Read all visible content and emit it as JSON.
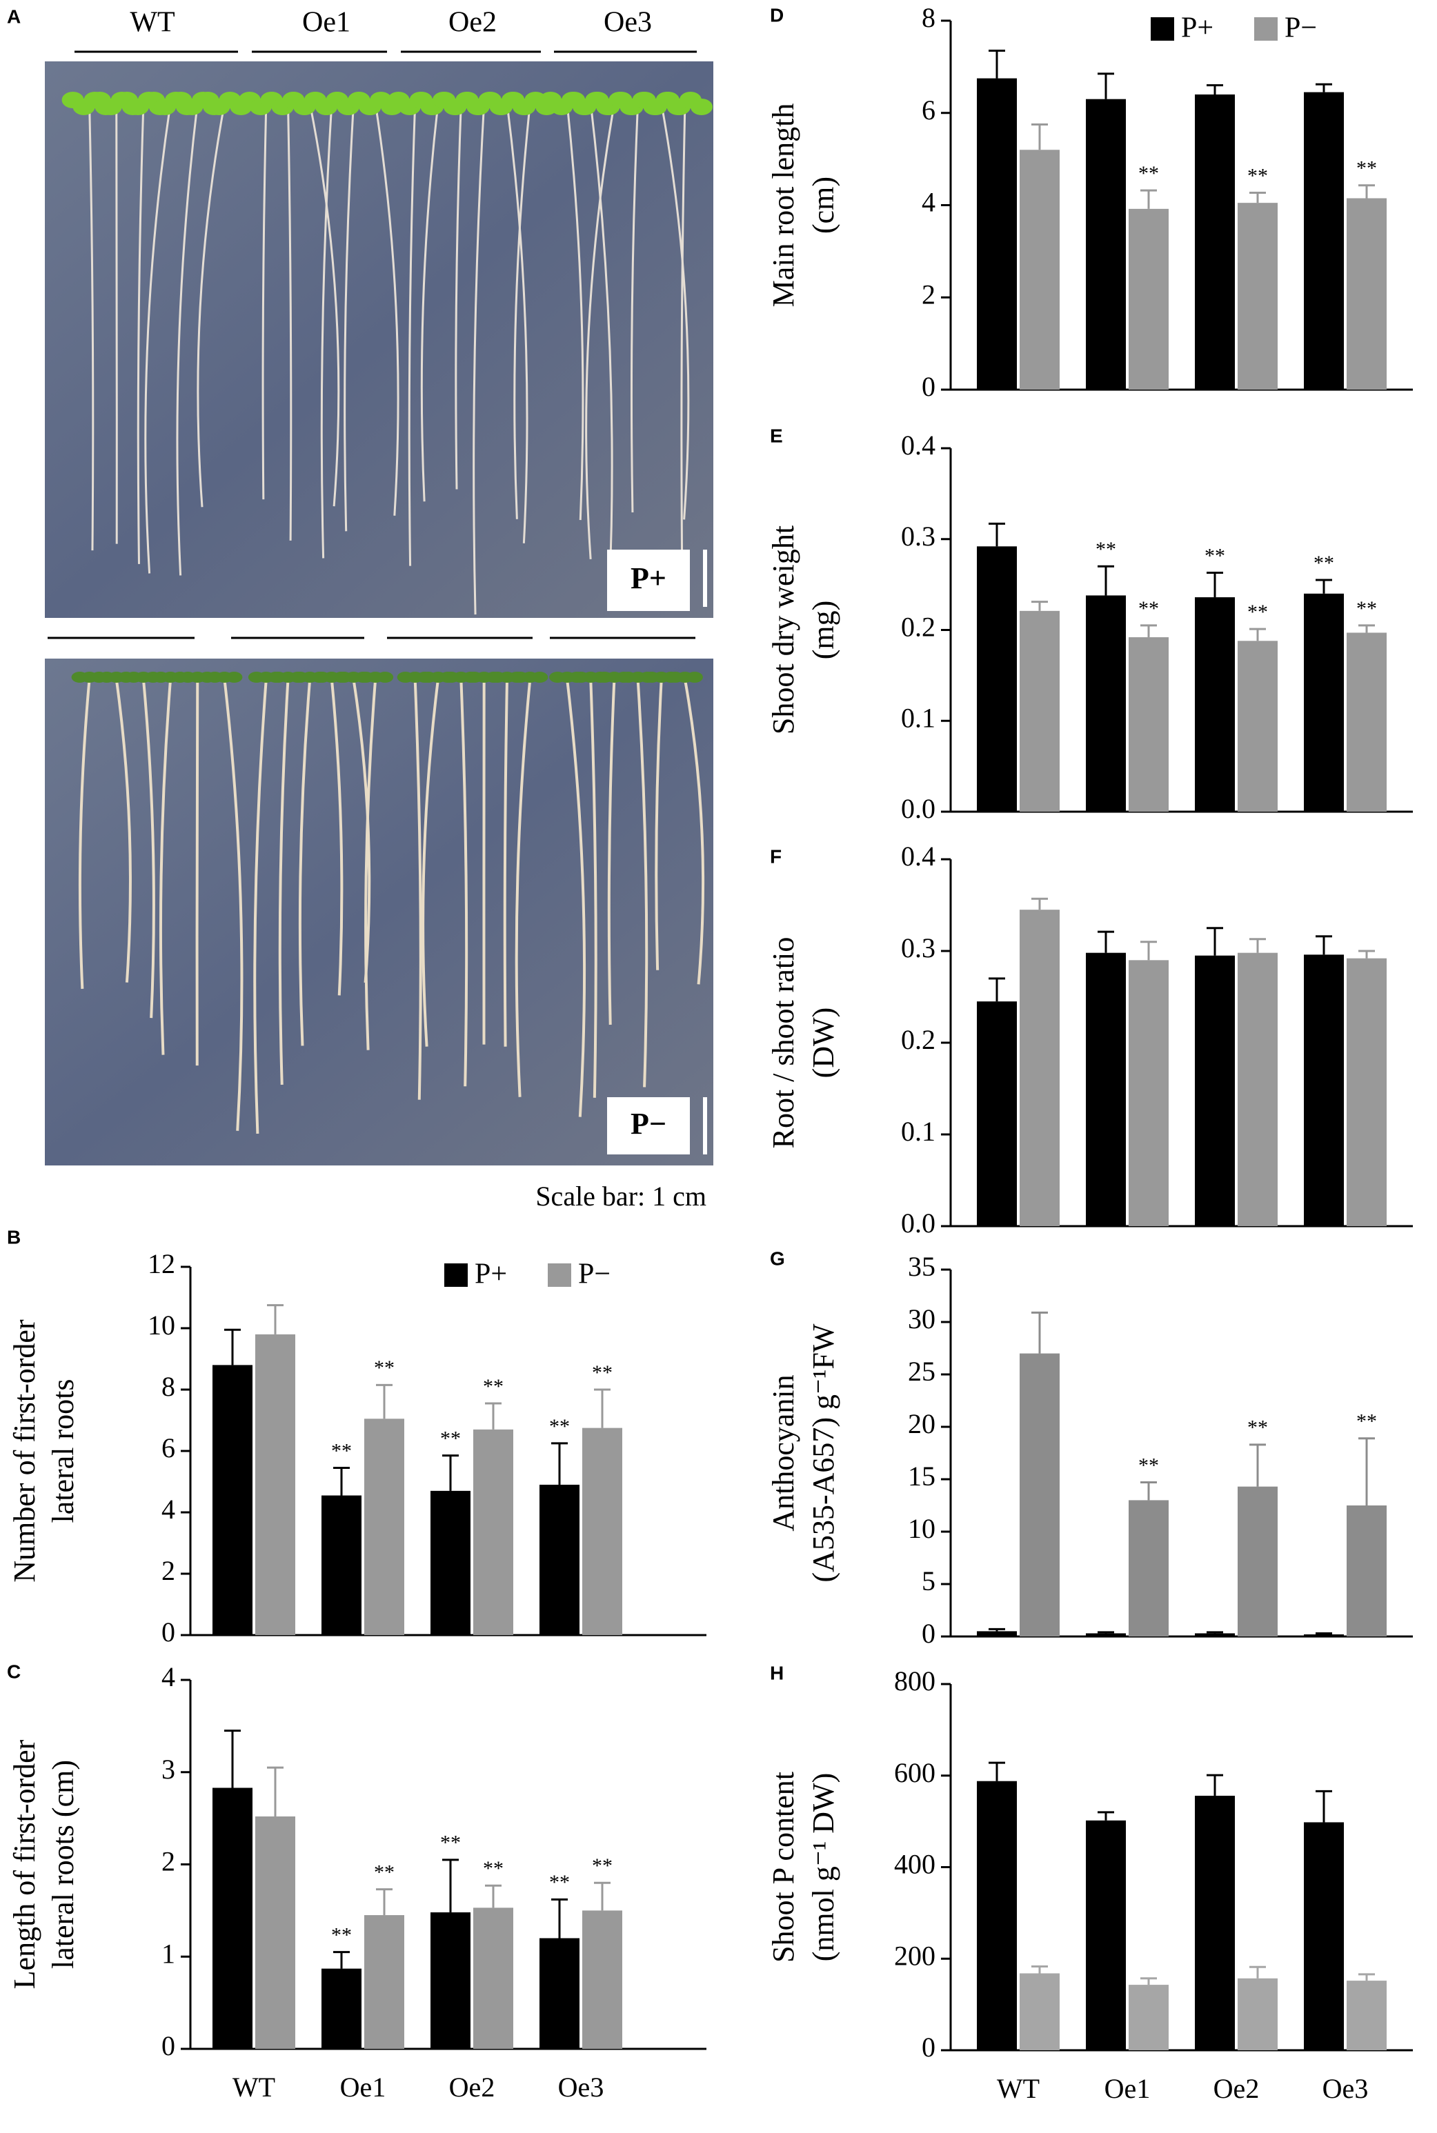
{
  "photo_panel": {
    "panel": "A",
    "genotypes": [
      "WT",
      "Oe1",
      "Oe2",
      "Oe3"
    ],
    "conditions": [
      "P+",
      "P−"
    ],
    "scale_text": "Scale bar: 1 cm"
  },
  "chart_data": [
    {
      "type": "bar",
      "panel": "B",
      "ylabel": [
        "Number of first-order",
        "lateral roots"
      ],
      "categories": [
        null,
        null,
        null,
        null
      ],
      "series": [
        {
          "name": "P+",
          "color": "#000000",
          "values": [
            8.8,
            4.55,
            4.7,
            4.9
          ],
          "errors": [
            1.15,
            0.9,
            1.15,
            1.35
          ],
          "annotations": [
            null,
            "**",
            "**",
            "**"
          ]
        },
        {
          "name": "P−",
          "color": "#999999",
          "values": [
            9.8,
            7.05,
            6.7,
            6.75
          ],
          "errors": [
            0.95,
            1.1,
            0.85,
            1.25
          ],
          "annotations": [
            null,
            "**",
            "**",
            "**"
          ]
        }
      ],
      "ylim": [
        0,
        12
      ],
      "yticks": [
        0,
        2,
        4,
        6,
        8,
        10,
        12
      ],
      "legend": "upper right"
    },
    {
      "type": "bar",
      "panel": "C",
      "ylabel": [
        "Length of first-order",
        "lateral roots (cm)"
      ],
      "categories": [
        "WT",
        "Oe1",
        "Oe2",
        "Oe3"
      ],
      "series": [
        {
          "color": "#000000",
          "values": [
            2.83,
            0.87,
            1.48,
            1.2
          ],
          "errors": [
            0.62,
            0.18,
            0.57,
            0.42
          ],
          "annotations": [
            null,
            "**",
            "**",
            "**"
          ]
        },
        {
          "color": "#999999",
          "values": [
            2.52,
            1.45,
            1.53,
            1.5
          ],
          "errors": [
            0.53,
            0.28,
            0.24,
            0.3
          ],
          "annotations": [
            null,
            "**",
            "**",
            "**"
          ]
        }
      ],
      "ylim": [
        0,
        4
      ],
      "yticks": [
        0,
        1,
        2,
        3,
        4
      ]
    },
    {
      "type": "bar",
      "panel": "D",
      "ylabel": [
        "Main root length",
        "(cm)"
      ],
      "categories": [
        null,
        null,
        null,
        null
      ],
      "series": [
        {
          "name": "P+",
          "color": "#000000",
          "values": [
            6.75,
            6.3,
            6.4,
            6.45
          ],
          "errors": [
            0.6,
            0.55,
            0.2,
            0.17
          ],
          "annotations": [
            null,
            null,
            null,
            null
          ]
        },
        {
          "name": "P−",
          "color": "#999999",
          "values": [
            5.2,
            3.92,
            4.05,
            4.15
          ],
          "errors": [
            0.55,
            0.4,
            0.22,
            0.28
          ],
          "annotations": [
            null,
            "**",
            "**",
            "**"
          ]
        }
      ],
      "ylim": [
        0,
        8
      ],
      "yticks": [
        0,
        2,
        4,
        6,
        8
      ],
      "legend": "upper right"
    },
    {
      "type": "bar",
      "panel": "E",
      "ylabel": [
        "Shoot dry weight",
        "(mg)"
      ],
      "categories": [
        null,
        null,
        null,
        null
      ],
      "series": [
        {
          "color": "#000000",
          "values": [
            0.292,
            0.238,
            0.236,
            0.24
          ],
          "errors": [
            0.025,
            0.032,
            0.027,
            0.015
          ],
          "annotations": [
            null,
            "**",
            "**",
            "**"
          ]
        },
        {
          "color": "#999999",
          "values": [
            0.221,
            0.192,
            0.188,
            0.197
          ],
          "errors": [
            0.01,
            0.013,
            0.013,
            0.008
          ],
          "annotations": [
            null,
            "**",
            "**",
            "**"
          ]
        }
      ],
      "ylim": [
        0,
        0.4
      ],
      "yticks": [
        {
          "value": 0,
          "label": "0.0"
        },
        0.1,
        0.2,
        0.3,
        0.4
      ]
    },
    {
      "type": "bar",
      "panel": "F",
      "ylabel": [
        "Root / shoot ratio",
        "(DW)"
      ],
      "categories": [
        null,
        null,
        null,
        null
      ],
      "series": [
        {
          "color": "#000000",
          "values": [
            0.245,
            0.298,
            0.295,
            0.296
          ],
          "errors": [
            0.025,
            0.023,
            0.03,
            0.02
          ],
          "annotations": [
            null,
            null,
            null,
            null
          ]
        },
        {
          "color": "#999999",
          "values": [
            0.345,
            0.29,
            0.298,
            0.292
          ],
          "errors": [
            0.012,
            0.02,
            0.015,
            0.008
          ],
          "annotations": [
            null,
            null,
            null,
            null
          ]
        }
      ],
      "ylim": [
        0,
        0.4
      ],
      "yticks": [
        {
          "value": 0,
          "label": "0.0"
        },
        0.1,
        0.2,
        0.3,
        0.4
      ]
    },
    {
      "type": "bar",
      "panel": "G",
      "ylabel": [
        "Anthocyanin",
        "(A535-A657) g⁻¹FW"
      ],
      "categories": [
        null,
        null,
        null,
        null
      ],
      "series": [
        {
          "color": "#000000",
          "values": [
            0.5,
            0.3,
            0.3,
            0.2
          ],
          "errors": [
            0.2,
            0.1,
            0.1,
            0.1
          ],
          "annotations": [
            null,
            null,
            null,
            null
          ]
        },
        {
          "color": "#8c8c8c",
          "values": [
            27,
            13,
            14.3,
            12.5
          ],
          "errors": [
            3.9,
            1.7,
            4,
            6.4
          ],
          "annotations": [
            null,
            "**",
            "**",
            "**"
          ]
        }
      ],
      "ylim": [
        0,
        35
      ],
      "yticks": [
        0,
        5,
        10,
        15,
        20,
        25,
        30,
        35
      ]
    },
    {
      "type": "bar",
      "panel": "H",
      "ylabel": [
        "Shoot P content",
        "(nmol g⁻¹ DW)"
      ],
      "categories": [
        "WT",
        "Oe1",
        "Oe2",
        "Oe3"
      ],
      "series": [
        {
          "color": "#000000",
          "values": [
            588,
            502,
            556,
            498
          ],
          "errors": [
            40,
            18,
            45,
            68
          ],
          "annotations": [
            null,
            null,
            null,
            null
          ]
        },
        {
          "color": "#a6a6a6",
          "values": [
            168,
            143,
            157,
            152
          ],
          "errors": [
            15,
            14,
            25,
            14
          ],
          "annotations": [
            null,
            null,
            null,
            null
          ]
        }
      ],
      "ylim": [
        0,
        800
      ],
      "yticks": [
        0,
        200,
        400,
        600,
        800
      ]
    }
  ]
}
